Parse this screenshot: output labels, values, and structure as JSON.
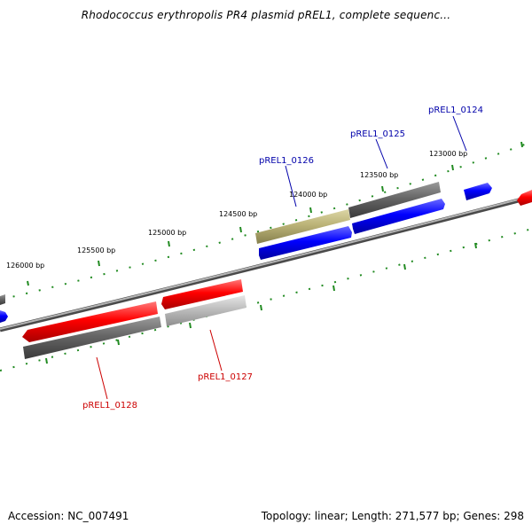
{
  "title": "Rhodococcus erythropolis PR4 plasmid pREL1, complete sequenc...",
  "footer": {
    "accession": "Accession: NC_007491",
    "summary": "Topology: linear; Length: 271,577 bp; Genes: 298"
  },
  "colors": {
    "forward_gene": "#ff0000",
    "reverse_gene": "#0000ff",
    "gray_gene": "#666666",
    "light_gray_gene": "#bbbbbb",
    "olive_gene": "#bbb377",
    "backbone": "#808080",
    "ticks": "#228b22",
    "label_blue": "#0000aa",
    "label_red": "#cc0000"
  },
  "ruler": {
    "labels": [
      "123000 bp",
      "123500 bp",
      "124000 bp",
      "124500 bp",
      "125000 bp",
      "125500 bp",
      "126000 bp"
    ]
  },
  "gene_labels": {
    "top": [
      "pREL1_0124",
      "pREL1_0125",
      "pREL1_0126"
    ],
    "bottom": [
      "pREL1_0127",
      "pREL1_0128"
    ]
  }
}
